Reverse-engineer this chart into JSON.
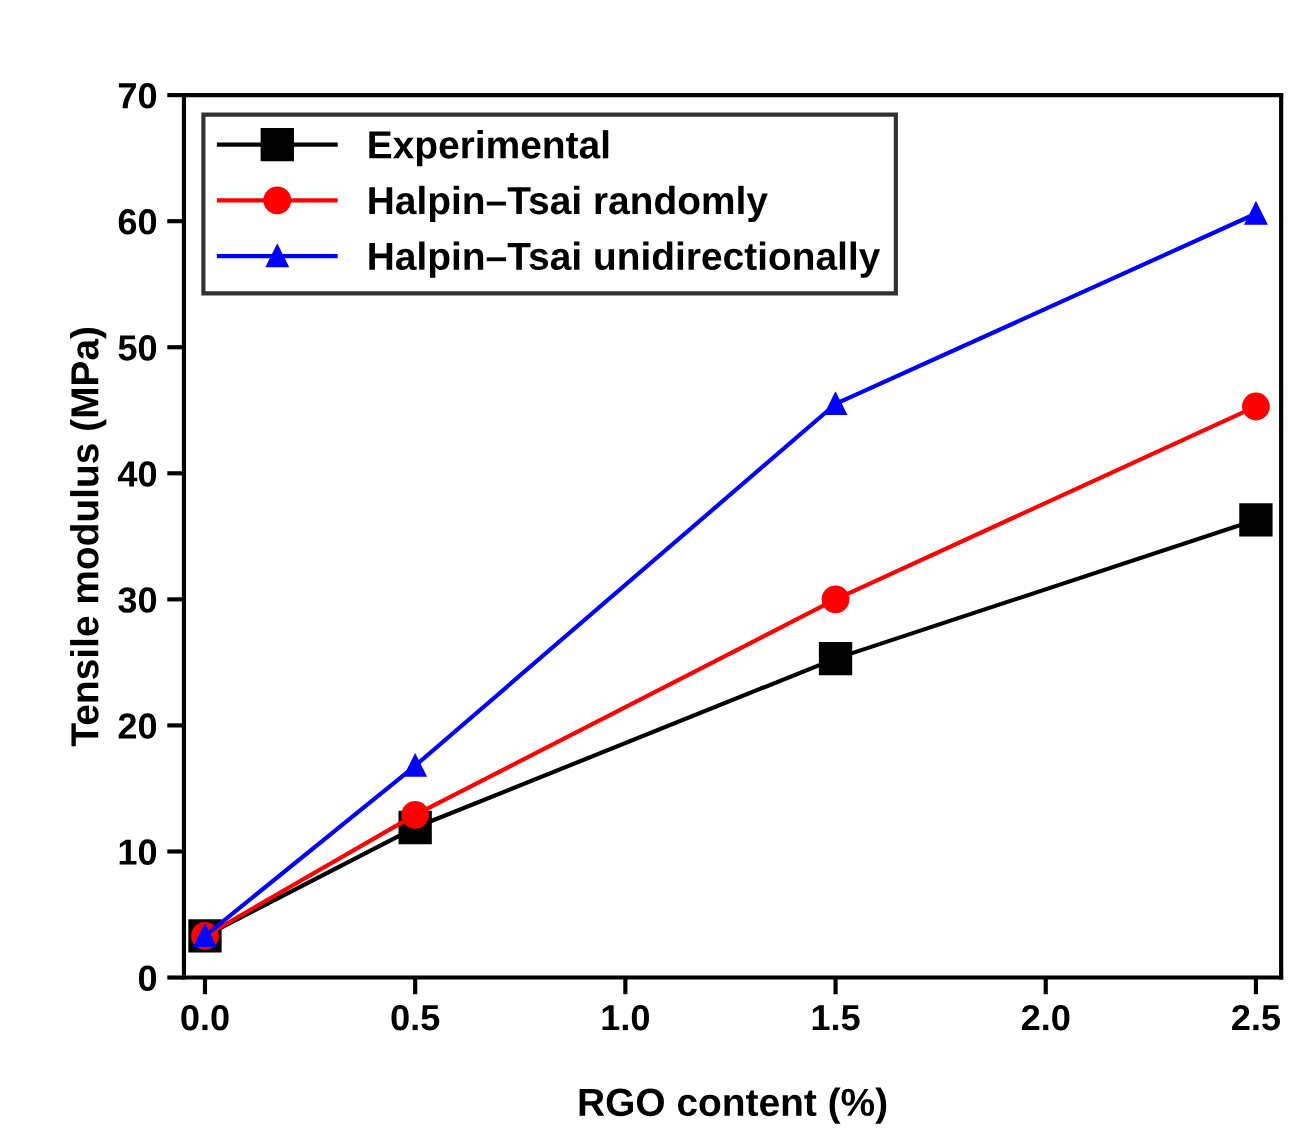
{
  "chart_data": {
    "type": "line",
    "xlabel": "RGO content (%)",
    "ylabel": "Tensile modulus (MPa)",
    "x": [
      0,
      0.5,
      1.5,
      2.5
    ],
    "series": [
      {
        "name": "Experimental",
        "color": "#000000",
        "marker": "square",
        "values": [
          3.3,
          11.9,
          25.3,
          36.3
        ]
      },
      {
        "name": "Halpin–Tsai randomly",
        "color": "#ff0000",
        "marker": "circle",
        "values": [
          3.3,
          12.9,
          30.0,
          45.3
        ]
      },
      {
        "name": "Halpin–Tsai unidirectionally",
        "color": "#0000ff",
        "marker": "triangle",
        "values": [
          3.3,
          16.8,
          45.5,
          60.6
        ]
      }
    ],
    "xlim": [
      -0.05,
      2.56
    ],
    "xticks": [
      {
        "value": 0,
        "label": "0.0"
      },
      0.5,
      {
        "value": 1,
        "label": "1.0"
      },
      1.5,
      {
        "value": 2,
        "label": "2.0"
      },
      2.5
    ],
    "ylim": [
      0,
      70
    ],
    "yticks": [
      0,
      10,
      20,
      30,
      40,
      50,
      60,
      70
    ],
    "legend": "top left",
    "grid": false,
    "line_style": "solid"
  }
}
